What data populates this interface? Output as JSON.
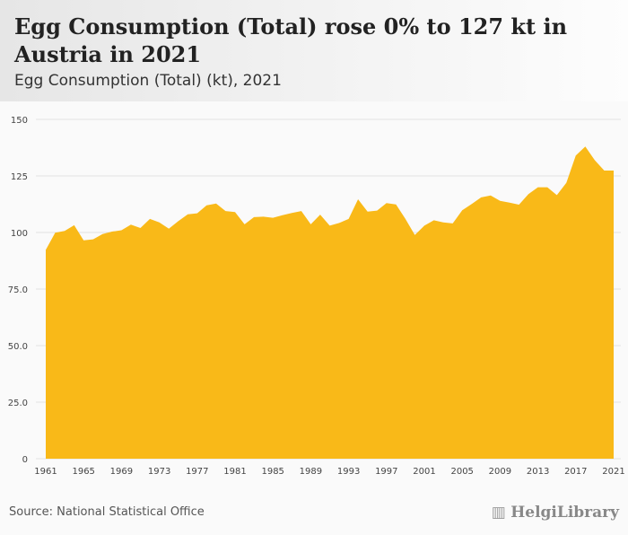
{
  "header": {
    "title": "Egg Consumption (Total) rose 0% to 127 kt in Austria in 2021",
    "subtitle": "Egg Consumption (Total) (kt), 2021"
  },
  "footer": {
    "source": "Source: National Statistical Office",
    "logo": "HelgiLibrary"
  },
  "colors": {
    "area": "#f9b918",
    "grid": "#e2e2e2"
  },
  "chart_data": {
    "type": "area",
    "title": "Egg Consumption (Total) (kt), 2021",
    "xlabel": "",
    "ylabel": "",
    "ylim": [
      0,
      150
    ],
    "yticks": [
      "0",
      "25.0",
      "50.0",
      "75.0",
      "100",
      "125",
      "150"
    ],
    "ytick_values": [
      0,
      25,
      50,
      75,
      100,
      125,
      150
    ],
    "xticks": [
      "1961",
      "1965",
      "1969",
      "1973",
      "1977",
      "1981",
      "1985",
      "1989",
      "1993",
      "1997",
      "2001",
      "2005",
      "2009",
      "2013",
      "2017",
      "2021"
    ],
    "x_start": 1961,
    "values": [
      92.3,
      99.9,
      100.7,
      103.2,
      96.5,
      97,
      99.3,
      100.4,
      101,
      103.5,
      102,
      106,
      104.5,
      101.7,
      105,
      108,
      108.5,
      112,
      112.8,
      109.5,
      109,
      103.6,
      106.8,
      107,
      106.5,
      107.6,
      108.6,
      109.5,
      103.6,
      107.9,
      103,
      104.2,
      106,
      114.7,
      109.2,
      109.7,
      113,
      112.4,
      106,
      98.9,
      103,
      105.4,
      104.5,
      104,
      109.8,
      112.6,
      115.5,
      116.4,
      114,
      113.2,
      112.3,
      117,
      120,
      120,
      116.5,
      122,
      134,
      138,
      132,
      127.4,
      127.4
    ],
    "grid": true
  }
}
